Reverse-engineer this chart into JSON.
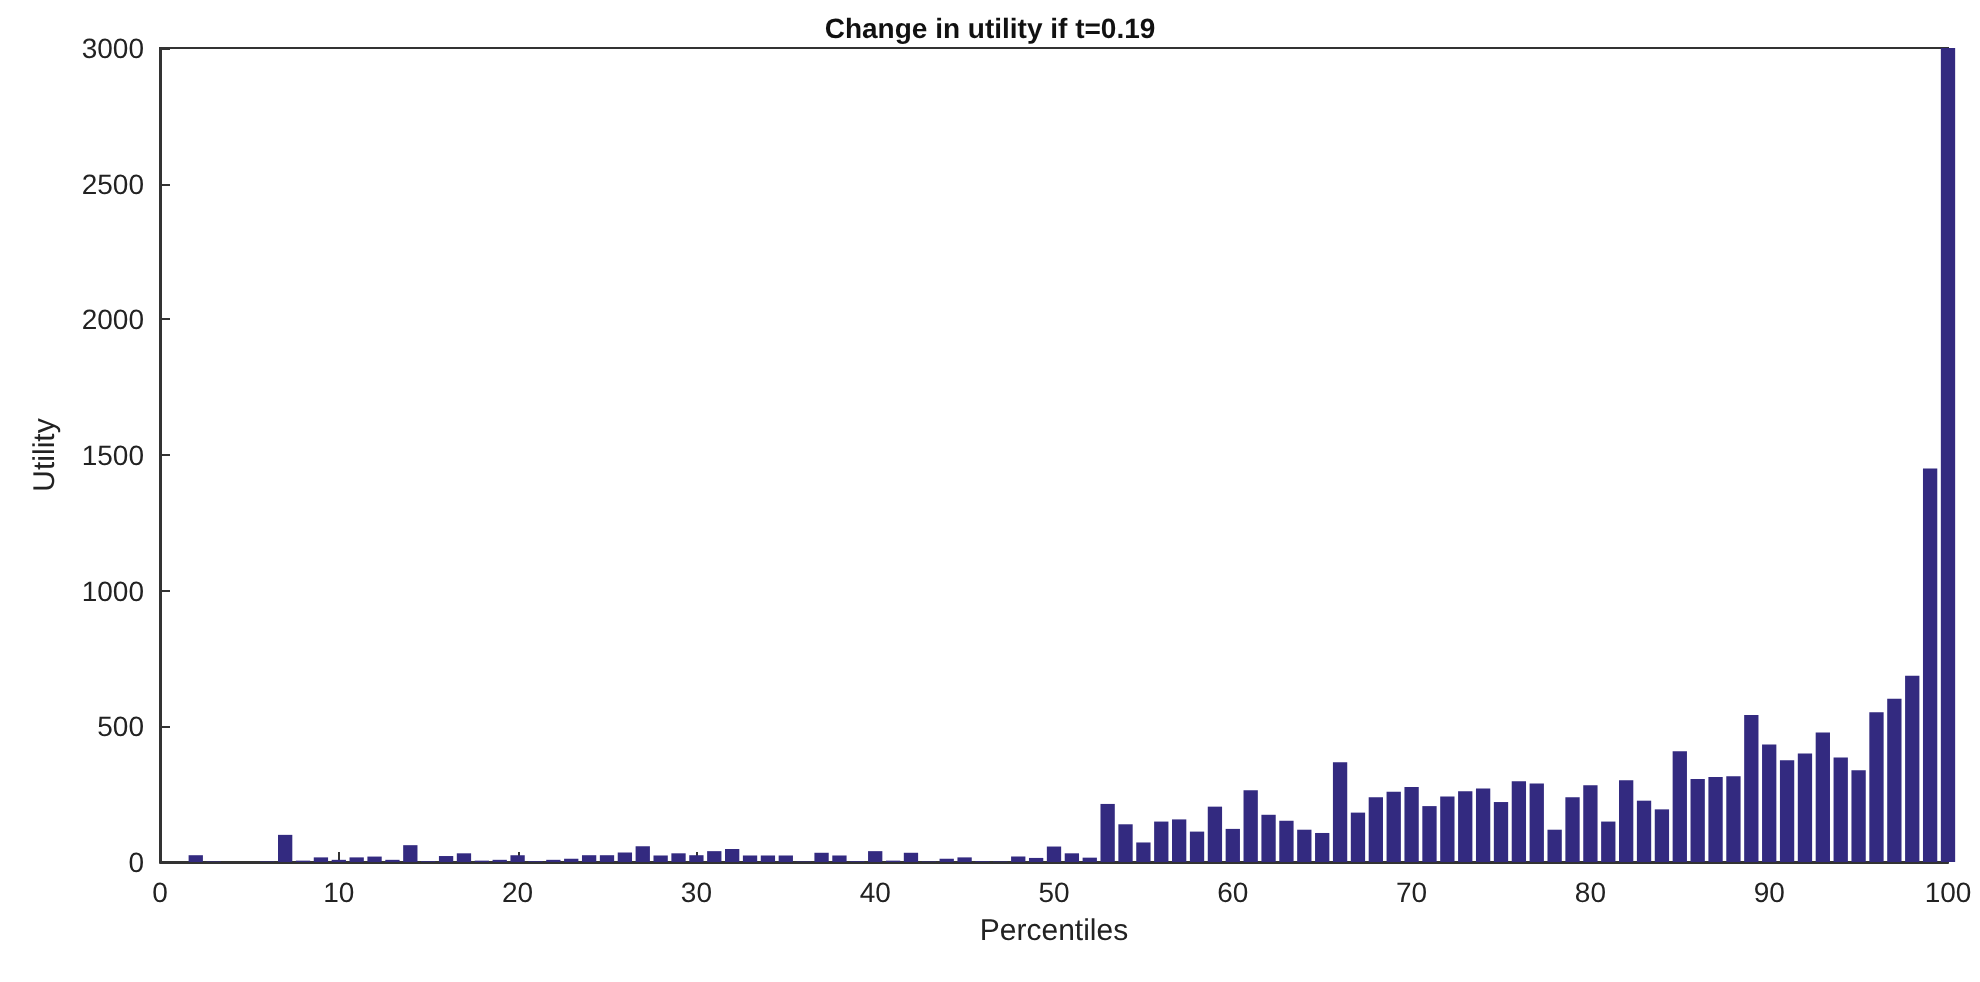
{
  "chart_data": {
    "type": "bar",
    "title": "Change in utility if t=0.19",
    "xlabel": "Percentiles",
    "ylabel": "Utility",
    "x": [
      1,
      2,
      3,
      4,
      5,
      6,
      7,
      8,
      9,
      10,
      11,
      12,
      13,
      14,
      15,
      16,
      17,
      18,
      19,
      20,
      21,
      22,
      23,
      24,
      25,
      26,
      27,
      28,
      29,
      30,
      31,
      32,
      33,
      34,
      35,
      36,
      37,
      38,
      39,
      40,
      41,
      42,
      43,
      44,
      45,
      46,
      47,
      48,
      49,
      50,
      51,
      52,
      53,
      54,
      55,
      56,
      57,
      58,
      59,
      60,
      61,
      62,
      63,
      64,
      65,
      66,
      67,
      68,
      69,
      70,
      71,
      72,
      73,
      74,
      75,
      76,
      77,
      78,
      79,
      80,
      81,
      82,
      83,
      84,
      85,
      86,
      87,
      88,
      89,
      90,
      91,
      92,
      93,
      94,
      95,
      96,
      97,
      98,
      99,
      100
    ],
    "values": [
      0,
      25,
      2,
      null,
      null,
      2,
      100,
      5,
      17,
      8,
      17,
      20,
      8,
      62,
      3,
      22,
      32,
      5,
      8,
      25,
      3,
      8,
      12,
      25,
      25,
      35,
      58,
      24,
      32,
      25,
      40,
      48,
      24,
      24,
      24,
      2,
      34,
      24,
      3,
      40,
      5,
      34,
      2,
      12,
      17,
      3,
      2,
      20,
      15,
      57,
      32,
      16,
      214,
      139,
      72,
      149,
      157,
      112,
      204,
      122,
      264,
      174,
      152,
      119,
      107,
      368,
      182,
      239,
      259,
      276,
      206,
      241,
      261,
      271,
      221,
      298,
      289,
      119,
      239,
      283,
      149,
      301,
      226,
      194,
      408,
      306,
      313,
      316,
      542,
      433,
      375,
      400,
      477,
      385,
      338,
      552,
      602,
      686,
      1450,
      3000
    ],
    "color": "#332a80",
    "xlim": [
      0,
      100
    ],
    "xticks": [
      0,
      10,
      20,
      30,
      40,
      50,
      60,
      70,
      80,
      90,
      100
    ],
    "ylim": [
      0,
      3000
    ],
    "yticks": [
      0,
      500,
      1000,
      1500,
      2000,
      2500,
      3000
    ],
    "grid": false
  }
}
